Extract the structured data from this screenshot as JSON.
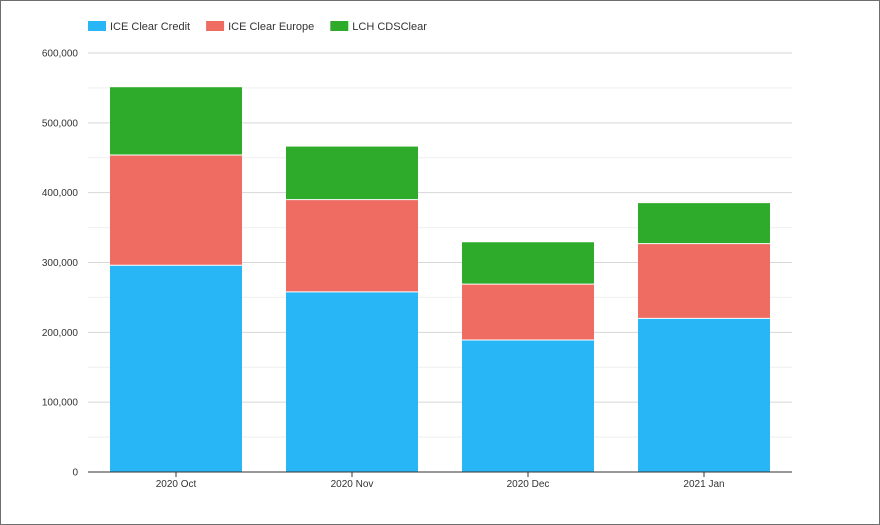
{
  "chart_data": {
    "type": "bar",
    "stacked": true,
    "categories": [
      "2020 Oct",
      "2020 Nov",
      "2020 Dec",
      "2021 Jan"
    ],
    "series": [
      {
        "name": "ICE Clear Credit",
        "values": [
          296000,
          258000,
          189000,
          220000
        ],
        "color": "#29b6f6"
      },
      {
        "name": "ICE Clear Europe",
        "values": [
          158000,
          132000,
          80000,
          107000
        ],
        "color": "#ef6c62"
      },
      {
        "name": "LCH CDSClear",
        "values": [
          97000,
          76000,
          60000,
          58000
        ],
        "color": "#2eab2b"
      }
    ],
    "y_ticks": [
      "0",
      "100,000",
      "200,000",
      "300,000",
      "400,000",
      "500,000",
      "600,000"
    ],
    "ylim": [
      0,
      600000
    ],
    "grid": true,
    "legend_position": "top-left",
    "title": "",
    "xlabel": "",
    "ylabel": ""
  }
}
